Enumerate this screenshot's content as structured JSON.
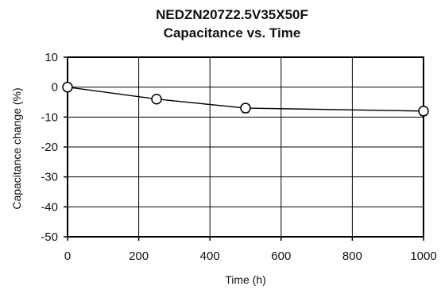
{
  "chart_data": {
    "type": "line",
    "title": "NEDZN207Z2.5V35X50F",
    "subtitle": "Capacitance vs. Time",
    "xlabel": "Time (h)",
    "ylabel": "Capacitance change (%)",
    "xlim": [
      0,
      1000
    ],
    "ylim": [
      -50,
      10
    ],
    "x_ticks": [
      0,
      200,
      400,
      600,
      800,
      1000
    ],
    "y_ticks": [
      10,
      0,
      -10,
      -20,
      -30,
      -40,
      -50
    ],
    "grid": true,
    "legend": "none",
    "series": [
      {
        "x": [
          0,
          250,
          500,
          1000
        ],
        "y": [
          0,
          -4,
          -7,
          -8
        ],
        "error_low": [
          0,
          -4.5,
          -8.5,
          -9.5
        ],
        "error_high": [
          0,
          -3.5,
          -6,
          -7
        ],
        "marker": "open-circle",
        "color": "#000000"
      }
    ]
  }
}
